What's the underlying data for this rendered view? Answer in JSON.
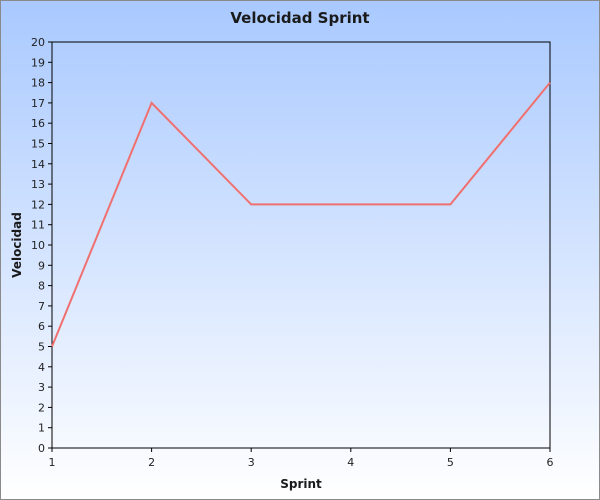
{
  "chart_data": {
    "type": "line",
    "title": "Velocidad Sprint",
    "xlabel": "Sprint",
    "ylabel": "Velocidad",
    "x": [
      1,
      2,
      3,
      4,
      5,
      6
    ],
    "xlim": [
      1,
      6
    ],
    "ylim": [
      0,
      20
    ],
    "y_ticks": [
      0,
      1,
      2,
      3,
      4,
      5,
      6,
      7,
      8,
      9,
      10,
      11,
      12,
      13,
      14,
      15,
      16,
      17,
      18,
      19,
      20
    ],
    "x_ticks": [
      1,
      2,
      3,
      4,
      5,
      6
    ],
    "series": [
      {
        "values": [
          5,
          17,
          12,
          12,
          12,
          18
        ],
        "color": "#f07070"
      }
    ],
    "grid": false,
    "legend": "none",
    "colors": {
      "background_top": "#a9c9ff",
      "background_bottom": "#ffffff",
      "frame": "#000000",
      "outer_border": "#8a8a8a"
    }
  }
}
